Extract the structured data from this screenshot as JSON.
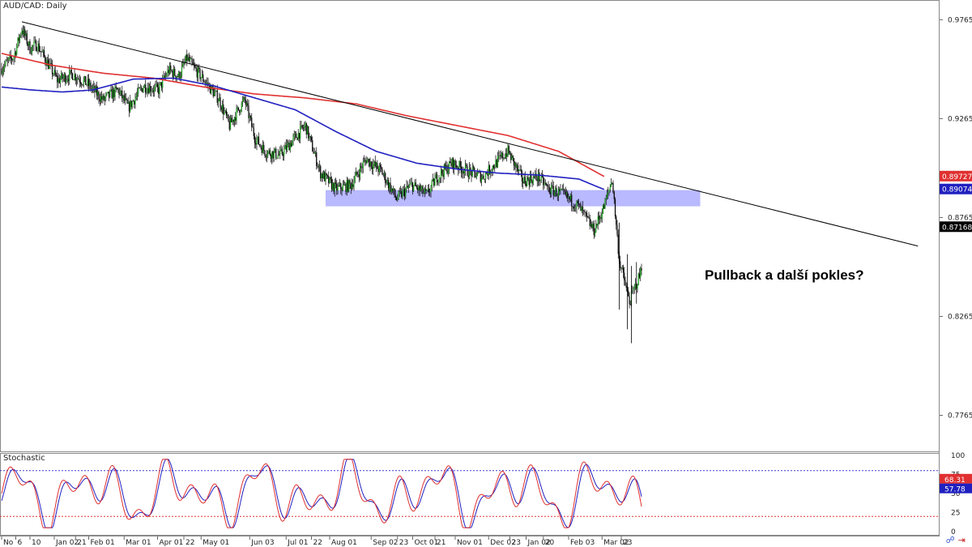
{
  "chart_data": {
    "type": "candlestick",
    "title": "AUD/CAD: Daily",
    "annotation": "Pullback a další pokles?",
    "price_axis": {
      "ylim": [
        0.7583,
        0.9865
      ],
      "tick_labels": [
        "0.97653",
        "0.92653",
        "0.87653",
        "0.82653",
        "0.77653"
      ],
      "tick_values": [
        0.97653,
        0.92653,
        0.87653,
        0.82653,
        0.77653
      ],
      "position": "right"
    },
    "x_axis": {
      "tick_labels": [
        "No",
        "6",
        "10",
        "Jan 02",
        "21",
        "Feb 01",
        "Mar 01",
        "Apr 01",
        "22",
        "May 01",
        "Jun 03",
        "Jul 01",
        "22",
        "Aug 01",
        "Sep 02",
        "23",
        "Oct 01",
        "21",
        "Nov 01",
        "Dec 02",
        "23",
        "Jan 02",
        "20",
        "Feb 03",
        "Mar 02",
        "23"
      ],
      "tick_index": [
        0,
        14,
        28,
        52,
        73,
        86,
        121,
        154,
        180,
        197,
        245,
        281,
        306,
        324,
        365,
        391,
        406,
        428,
        448,
        481,
        502,
        518,
        535,
        560,
        593,
        612
      ]
    },
    "trendline": {
      "from": {
        "index": 20,
        "price": 0.9755
      },
      "to": {
        "index": 905,
        "price": 0.8621
      },
      "color": "#000000"
    },
    "support_zone": {
      "start_index": 320,
      "end_index": 690,
      "price_high": 0.8904,
      "price_low": 0.8822,
      "color": "#8080ff"
    },
    "moving_averages": [
      {
        "color": "#e03030",
        "last_value": "0.89727",
        "anchors": [
          [
            0,
            0.9595
          ],
          [
            50,
            0.9535
          ],
          [
            100,
            0.9495
          ],
          [
            150,
            0.947
          ],
          [
            200,
            0.9425
          ],
          [
            250,
            0.939
          ],
          [
            300,
            0.937
          ],
          [
            350,
            0.934
          ],
          [
            400,
            0.928
          ],
          [
            450,
            0.923
          ],
          [
            500,
            0.918
          ],
          [
            550,
            0.91
          ],
          [
            595,
            0.8973
          ]
        ]
      },
      {
        "color": "#2020c0",
        "last_value": "0.89074",
        "anchors": [
          [
            0,
            0.9425
          ],
          [
            30,
            0.941
          ],
          [
            60,
            0.94
          ],
          [
            90,
            0.941
          ],
          [
            130,
            0.9465
          ],
          [
            170,
            0.947
          ],
          [
            210,
            0.943
          ],
          [
            250,
            0.937
          ],
          [
            290,
            0.931
          ],
          [
            330,
            0.92
          ],
          [
            370,
            0.91
          ],
          [
            410,
            0.904
          ],
          [
            450,
            0.901
          ],
          [
            490,
            0.899
          ],
          [
            530,
            0.898
          ],
          [
            570,
            0.896
          ],
          [
            595,
            0.8907
          ]
        ]
      }
    ],
    "current_price_label": "0.87168",
    "price_series_anchors": [
      [
        0,
        0.952
      ],
      [
        12,
        0.958
      ],
      [
        20,
        0.972
      ],
      [
        28,
        0.962
      ],
      [
        35,
        0.964
      ],
      [
        45,
        0.955
      ],
      [
        55,
        0.946
      ],
      [
        70,
        0.949
      ],
      [
        85,
        0.944
      ],
      [
        100,
        0.936
      ],
      [
        115,
        0.941
      ],
      [
        125,
        0.932
      ],
      [
        140,
        0.943
      ],
      [
        155,
        0.941
      ],
      [
        165,
        0.951
      ],
      [
        175,
        0.948
      ],
      [
        183,
        0.957
      ],
      [
        190,
        0.952
      ],
      [
        200,
        0.946
      ],
      [
        215,
        0.936
      ],
      [
        225,
        0.923
      ],
      [
        235,
        0.932
      ],
      [
        240,
        0.936
      ],
      [
        250,
        0.917
      ],
      [
        260,
        0.91
      ],
      [
        275,
        0.908
      ],
      [
        290,
        0.917
      ],
      [
        300,
        0.923
      ],
      [
        315,
        0.899
      ],
      [
        330,
        0.891
      ],
      [
        345,
        0.893
      ],
      [
        360,
        0.906
      ],
      [
        375,
        0.9
      ],
      [
        390,
        0.886
      ],
      [
        405,
        0.893
      ],
      [
        420,
        0.888
      ],
      [
        430,
        0.897
      ],
      [
        445,
        0.904
      ],
      [
        460,
        0.9
      ],
      [
        475,
        0.897
      ],
      [
        490,
        0.905
      ],
      [
        500,
        0.91
      ],
      [
        515,
        0.895
      ],
      [
        530,
        0.897
      ],
      [
        540,
        0.891
      ],
      [
        555,
        0.888
      ],
      [
        570,
        0.882
      ],
      [
        585,
        0.87
      ],
      [
        595,
        0.882
      ],
      [
        603,
        0.896
      ],
      [
        610,
        0.855
      ],
      [
        620,
        0.834
      ],
      [
        630,
        0.847
      ],
      [
        640,
        0.871
      ]
    ],
    "stochastic": {
      "label": "Stochastic",
      "levels": [
        80,
        20
      ],
      "tick_labels": [
        "100",
        "75",
        "50",
        "25",
        "0"
      ],
      "tick_values": [
        100,
        75,
        50,
        25,
        0
      ],
      "ylim": [
        0,
        100
      ],
      "k_last": "68.31",
      "d_last": "57.78",
      "k_color": "#e03030",
      "d_color": "#2020c0",
      "level_color_upper": "#3a3ad0",
      "level_color_lower": "#e03030"
    },
    "grid": false,
    "legend": "none"
  }
}
